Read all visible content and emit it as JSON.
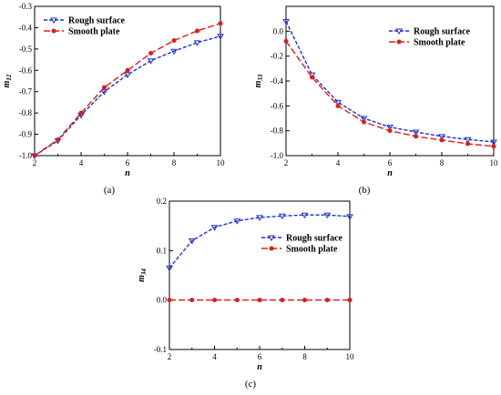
{
  "colors": {
    "rough": "#1f2fd6",
    "smooth": "#e01b1b",
    "axis": "#000000"
  },
  "chart_data": [
    {
      "type": "line",
      "panel": "(a)",
      "xlabel": "n",
      "ylabel": "m12",
      "ylabel_main": "m",
      "ylabel_sub": "12",
      "xlim": [
        2,
        10
      ],
      "ylim": [
        -1.0,
        -0.3
      ],
      "xticks": [
        2,
        4,
        6,
        8,
        10
      ],
      "xtick_labels": [
        "2",
        "4",
        "6",
        "8",
        "10"
      ],
      "yticks": [
        -1.0,
        -0.9,
        -0.8,
        -0.7,
        -0.6,
        -0.5,
        -0.4,
        -0.3
      ],
      "ytick_labels": [
        "-1.0",
        "-0.9",
        "-0.8",
        "-0.7",
        "-0.6",
        "-0.5",
        "-0.4",
        "-0.3"
      ],
      "legend_position": "top-left",
      "x": [
        2,
        3,
        4,
        5,
        6,
        7,
        8,
        9,
        10
      ],
      "series": [
        {
          "name": "Rough surface",
          "style": "rough",
          "values": [
            -1.0,
            -0.93,
            -0.81,
            -0.7,
            -0.62,
            -0.555,
            -0.51,
            -0.47,
            -0.44
          ]
        },
        {
          "name": "Smooth plate",
          "style": "smooth",
          "values": [
            -1.0,
            -0.925,
            -0.8,
            -0.68,
            -0.6,
            -0.52,
            -0.46,
            -0.415,
            -0.38
          ]
        }
      ]
    },
    {
      "type": "line",
      "panel": "(b)",
      "xlabel": "n",
      "ylabel": "m33",
      "ylabel_main": "m",
      "ylabel_sub": "33",
      "xlim": [
        2,
        10
      ],
      "ylim": [
        -1.0,
        0.2
      ],
      "xticks": [
        2,
        4,
        6,
        8,
        10
      ],
      "xtick_labels": [
        "2",
        "4",
        "6",
        "8",
        "10"
      ],
      "yticks": [
        -1.0,
        -0.8,
        -0.6,
        -0.4,
        -0.2,
        0.0
      ],
      "ytick_labels": [
        "-1.0",
        "-0.8",
        "-0.6",
        "-0.4",
        "-0.2",
        "0.0"
      ],
      "legend_position": "top-right",
      "x": [
        2,
        3,
        4,
        5,
        6,
        7,
        8,
        9,
        10
      ],
      "series": [
        {
          "name": "Rough surface",
          "style": "rough",
          "values": [
            0.08,
            -0.35,
            -0.57,
            -0.7,
            -0.77,
            -0.81,
            -0.845,
            -0.87,
            -0.89
          ]
        },
        {
          "name": "Smooth plate",
          "style": "smooth",
          "values": [
            -0.08,
            -0.37,
            -0.6,
            -0.73,
            -0.8,
            -0.845,
            -0.875,
            -0.905,
            -0.925
          ]
        }
      ]
    },
    {
      "type": "line",
      "panel": "(c)",
      "xlabel": "n",
      "ylabel": "m34",
      "ylabel_main": "m",
      "ylabel_sub": "34",
      "xlim": [
        2,
        10
      ],
      "ylim": [
        -0.1,
        0.2
      ],
      "xticks": [
        2,
        4,
        6,
        8,
        10
      ],
      "xtick_labels": [
        "2",
        "4",
        "6",
        "8",
        "10"
      ],
      "yticks": [
        -0.1,
        0.0,
        0.1,
        0.2
      ],
      "ytick_labels": [
        "-0.1",
        "0.0",
        "0.1",
        "0.2"
      ],
      "legend_position": "top-right",
      "x": [
        2,
        3,
        4,
        5,
        6,
        7,
        8,
        9,
        10
      ],
      "series": [
        {
          "name": "Rough surface",
          "style": "rough",
          "values": [
            0.065,
            0.12,
            0.147,
            0.16,
            0.167,
            0.17,
            0.172,
            0.172,
            0.169
          ]
        },
        {
          "name": "Smooth plate",
          "style": "smooth",
          "values": [
            0.0,
            0.0,
            0.0,
            0.0,
            0.0,
            0.0,
            0.0,
            0.0,
            0.0
          ]
        }
      ]
    }
  ]
}
